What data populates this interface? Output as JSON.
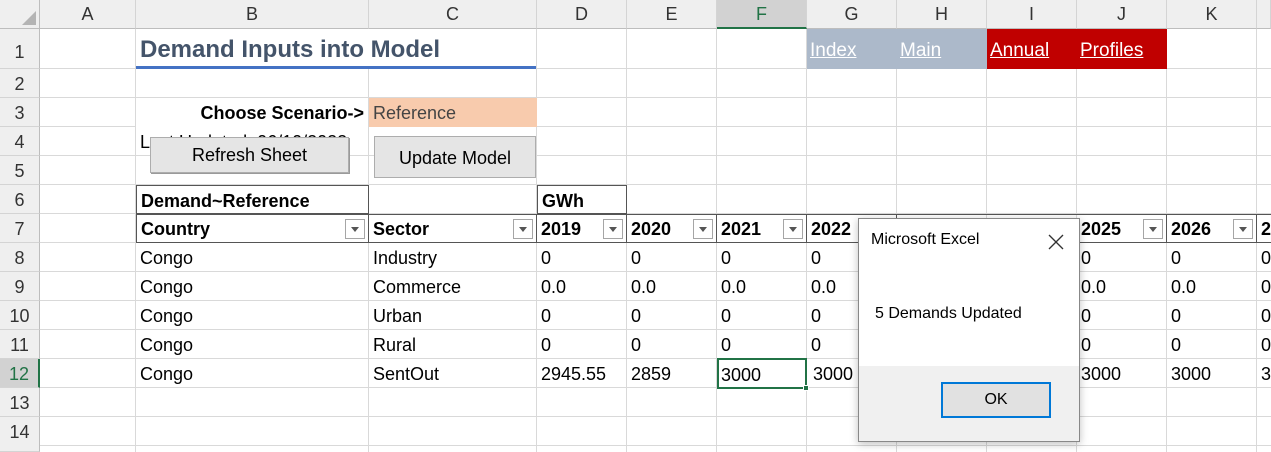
{
  "columns": [
    "A",
    "B",
    "C",
    "D",
    "E",
    "F",
    "G",
    "H",
    "I",
    "J",
    "K"
  ],
  "rows": [
    "1",
    "2",
    "3",
    "4",
    "5",
    "6",
    "7",
    "8",
    "9",
    "10",
    "11",
    "12",
    "13",
    "14"
  ],
  "title": "Demand Inputs into Model",
  "nav": {
    "index": "Index",
    "main": "Main",
    "annual": "Annual",
    "profiles": "Profiles"
  },
  "scenario": {
    "label": "Choose Scenario->",
    "value": "Reference"
  },
  "last_updated": "Last Updated: 06/10/2022",
  "buttons": {
    "refresh": "Refresh Sheet",
    "update": "Update Model"
  },
  "table": {
    "header_demand": "Demand~Reference",
    "unit": "GWh",
    "col_country": "Country",
    "col_sector": "Sector",
    "years": [
      "2019",
      "2020",
      "2021",
      "2022",
      "2025",
      "2026",
      "2"
    ],
    "rows": [
      {
        "country": "Congo",
        "sector": "Industry",
        "v": [
          "0",
          "0",
          "0",
          "0",
          "0",
          "0",
          "0"
        ]
      },
      {
        "country": "Congo",
        "sector": "Commerce",
        "v": [
          "0.0",
          "0.0",
          "0.0",
          "0.0",
          "0.0",
          "0.0",
          "0"
        ]
      },
      {
        "country": "Congo",
        "sector": "Urban",
        "v": [
          "0",
          "0",
          "0",
          "0",
          "0",
          "0",
          "0"
        ]
      },
      {
        "country": "Congo",
        "sector": "Rural",
        "v": [
          "0",
          "0",
          "0",
          "0",
          "0",
          "0",
          "0"
        ]
      },
      {
        "country": "Congo",
        "sector": "SentOut",
        "v": [
          "2945.55",
          "2859",
          "3000",
          "3000",
          "3000",
          "3000",
          "3"
        ]
      }
    ]
  },
  "dialog": {
    "title": "Microsoft Excel",
    "message": "5 Demands Updated",
    "ok": "OK"
  },
  "colors": {
    "nav_blue": "#acb9ca",
    "nav_red": "#c00000",
    "scenario_fill": "#f8cbad",
    "title_color": "#44546a",
    "excel_green": "#217346"
  }
}
